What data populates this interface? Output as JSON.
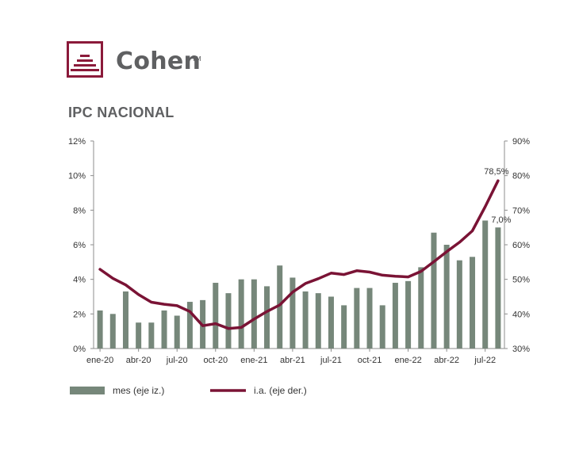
{
  "brand": {
    "name": "Cohen",
    "trademark": "TM"
  },
  "title": "IPC NACIONAL",
  "colors": {
    "bar": "#76877a",
    "line": "#7a1335",
    "brand": "#8b1a3a",
    "axis": "#8c8c8c"
  },
  "chart_data": {
    "type": "bar",
    "title": "IPC NACIONAL",
    "categories": [
      "ene-20",
      "feb-20",
      "mar-20",
      "abr-20",
      "may-20",
      "jun-20",
      "jul-20",
      "ago-20",
      "sep-20",
      "oct-20",
      "nov-20",
      "dic-20",
      "ene-21",
      "feb-21",
      "mar-21",
      "abr-21",
      "may-21",
      "jun-21",
      "jul-21",
      "ago-21",
      "sep-21",
      "oct-21",
      "nov-21",
      "dic-21",
      "ene-22",
      "feb-22",
      "mar-22",
      "abr-22",
      "may-22",
      "jun-22",
      "jul-22",
      "ago-22"
    ],
    "x_tick_labels": [
      "ene-20",
      "abr-20",
      "jul-20",
      "oct-20",
      "ene-21",
      "abr-21",
      "jul-21",
      "oct-21",
      "ene-22",
      "abr-22",
      "jul-22"
    ],
    "series": [
      {
        "name": "mes (eje iz.)",
        "type": "bar",
        "axis": "left",
        "values": [
          2.2,
          2.0,
          3.3,
          1.5,
          1.5,
          2.2,
          1.9,
          2.7,
          2.8,
          3.8,
          3.2,
          4.0,
          4.0,
          3.6,
          4.8,
          4.1,
          3.3,
          3.2,
          3.0,
          2.5,
          3.5,
          3.5,
          2.5,
          3.8,
          3.9,
          4.7,
          6.7,
          6.0,
          5.1,
          5.3,
          7.4,
          7.0
        ]
      },
      {
        "name": "i.a. (eje der.)",
        "type": "line",
        "axis": "right",
        "values": [
          52.9,
          50.3,
          48.4,
          45.6,
          43.4,
          42.8,
          42.4,
          40.7,
          36.6,
          37.2,
          35.8,
          36.1,
          38.5,
          40.7,
          42.6,
          46.3,
          48.8,
          50.2,
          51.8,
          51.4,
          52.5,
          52.1,
          51.2,
          50.9,
          50.7,
          52.3,
          55.1,
          58.0,
          60.7,
          64.0,
          71.0,
          78.5
        ]
      }
    ],
    "y_left": {
      "ylim": [
        0,
        12
      ],
      "ticks": [
        "0%",
        "2%",
        "4%",
        "6%",
        "8%",
        "10%",
        "12%"
      ]
    },
    "y_right": {
      "ylim": [
        30,
        90
      ],
      "ticks": [
        "30%",
        "40%",
        "50%",
        "60%",
        "70%",
        "80%",
        "90%"
      ]
    },
    "annotations": [
      "78,5%",
      "7,0%"
    ],
    "legend_position": "bottom",
    "grid": false
  }
}
